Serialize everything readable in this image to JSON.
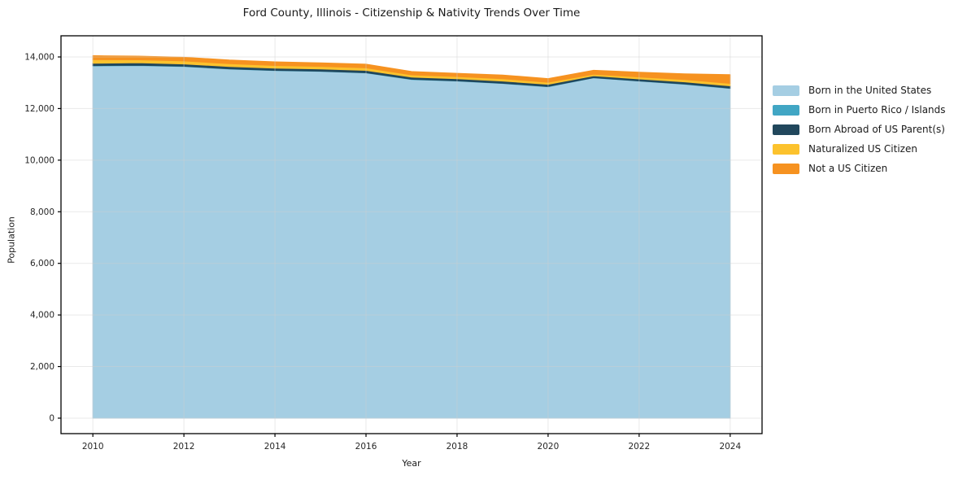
{
  "title": "Ford County, Illinois - Citizenship & Nativity Trends Over Time",
  "chart_data": {
    "type": "area",
    "stacked": true,
    "title": "Ford County, Illinois - Citizenship & Nativity Trends Over Time",
    "xlabel": "Year",
    "ylabel": "Population",
    "x": [
      2010,
      2011,
      2012,
      2013,
      2014,
      2015,
      2016,
      2017,
      2018,
      2019,
      2020,
      2021,
      2022,
      2023,
      2024
    ],
    "series": [
      {
        "name": "Born in the United States",
        "color": "#a5cee3",
        "values": [
          13650,
          13665,
          13630,
          13530,
          13470,
          13440,
          13380,
          13125,
          13065,
          12970,
          12845,
          13190,
          13065,
          12940,
          12780
        ]
      },
      {
        "name": "Born in Puerto Rico / Islands",
        "color": "#41a6c4",
        "values": [
          15,
          10,
          10,
          10,
          10,
          10,
          10,
          10,
          10,
          10,
          10,
          5,
          5,
          10,
          10
        ]
      },
      {
        "name": "Born Abroad of US Parent(s)",
        "color": "#21475c",
        "values": [
          90,
          100,
          90,
          90,
          85,
          85,
          90,
          85,
          80,
          85,
          85,
          75,
          80,
          85,
          90
        ]
      },
      {
        "name": "Naturalized US Citizen",
        "color": "#fcc22d",
        "values": [
          140,
          115,
          115,
          110,
          105,
          100,
          100,
          85,
          85,
          90,
          80,
          60,
          75,
          90,
          95
        ]
      },
      {
        "name": "Not a US Citizen",
        "color": "#f69220",
        "values": [
          155,
          140,
          145,
          140,
          140,
          135,
          140,
          130,
          125,
          145,
          140,
          155,
          185,
          220,
          340
        ]
      }
    ],
    "totals": [
      14050,
      14030,
      13990,
      13880,
      13810,
      13770,
      13720,
      13435,
      13365,
      13300,
      13160,
      13485,
      13410,
      13345,
      13315
    ],
    "xticks": [
      2010,
      2012,
      2014,
      2016,
      2018,
      2020,
      2022,
      2024
    ],
    "yticks": [
      0,
      2000,
      4000,
      6000,
      8000,
      10000,
      12000,
      14000
    ],
    "ytick_labels": [
      "0",
      "2,000",
      "4,000",
      "6,000",
      "8,000",
      "10,000",
      "12,000",
      "14,000"
    ],
    "xlim": [
      2009.3,
      2024.7
    ],
    "ylim": [
      -600,
      14820
    ],
    "grid": true,
    "legend_position": "right",
    "background": "#ffffff"
  }
}
